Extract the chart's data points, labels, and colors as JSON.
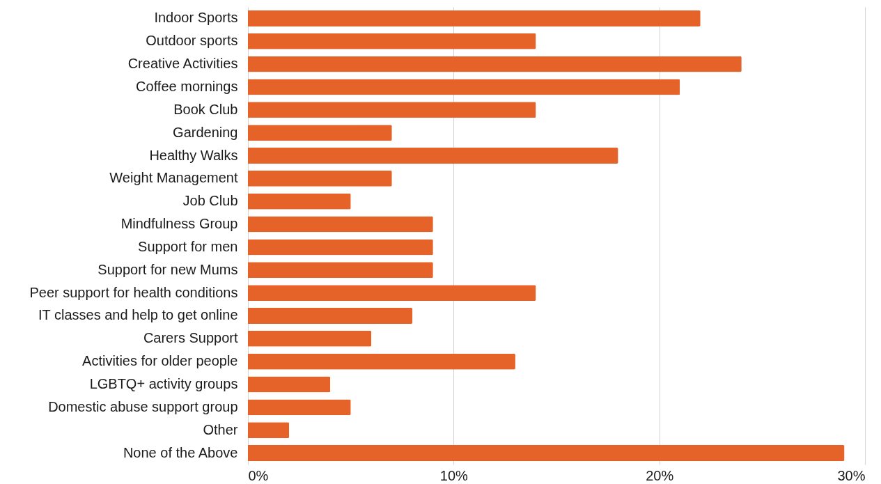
{
  "chart_data": {
    "type": "bar",
    "orientation": "horizontal",
    "categories": [
      "Indoor Sports ",
      "Outdoor sports ",
      "Creative Activities",
      "Coffee mornings",
      "Book Club",
      "Gardening",
      "Healthy Walks",
      "Weight Management",
      "Job Club",
      "Mindfulness Group",
      "Support for men",
      "Support for new Mums",
      "Peer support for health conditions",
      "IT classes and help to get online",
      "Carers Support",
      "Activities for older people",
      "LGBTQ+ activity groups",
      "Domestic abuse support group",
      "Other ",
      "None of the Above"
    ],
    "values": [
      22,
      14,
      24,
      21,
      14,
      7,
      18,
      7,
      5,
      9,
      9,
      9,
      14,
      8,
      6,
      13,
      4,
      5,
      2,
      29
    ],
    "color": "#e56228",
    "xlim": [
      0,
      30
    ],
    "xticks": [
      {
        "value": 0,
        "label": "0%"
      },
      {
        "value": 10,
        "label": "10%"
      },
      {
        "value": 20,
        "label": "20%"
      },
      {
        "value": 30,
        "label": "30%"
      }
    ],
    "grid": "x"
  }
}
